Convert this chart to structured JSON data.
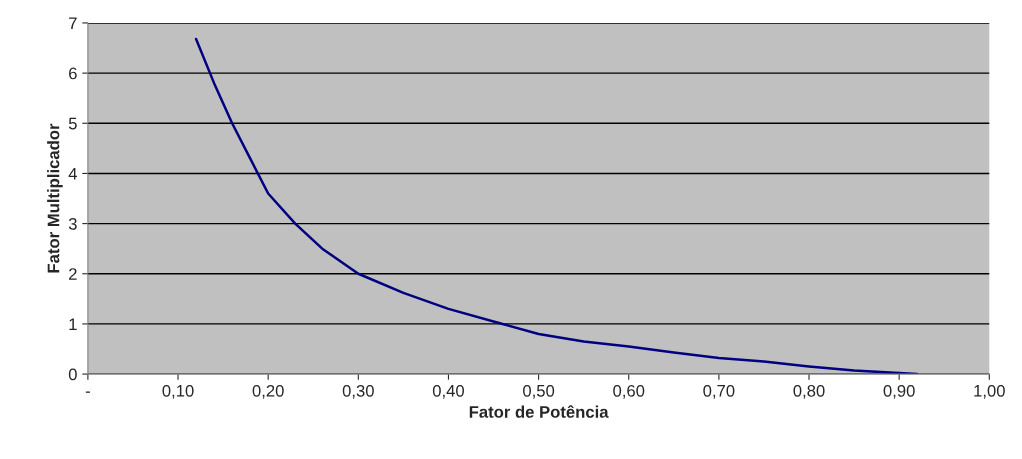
{
  "chart_data": {
    "type": "line",
    "xlabel": "Fator de Potência",
    "ylabel": "Fator Multiplicador",
    "x": [
      0.12,
      0.14,
      0.16,
      0.18,
      0.2,
      0.23,
      0.26,
      0.3,
      0.35,
      0.4,
      0.46,
      0.5,
      0.55,
      0.6,
      0.65,
      0.7,
      0.75,
      0.8,
      0.85,
      0.9,
      0.92
    ],
    "series": [
      {
        "color": "#000080",
        "values": [
          6.68,
          5.8,
          5.0,
          4.3,
          3.6,
          3.0,
          2.5,
          2.0,
          1.62,
          1.3,
          1.0,
          0.8,
          0.65,
          0.55,
          0.43,
          0.32,
          0.25,
          0.15,
          0.07,
          0.02,
          0.0
        ]
      }
    ],
    "xlim": [
      0,
      1
    ],
    "xticks": [
      {
        "value": 0,
        "label": "-"
      },
      {
        "value": 0.1,
        "label": "0,10"
      },
      {
        "value": 0.2,
        "label": "0,20"
      },
      {
        "value": 0.3,
        "label": "0,30"
      },
      {
        "value": 0.4,
        "label": "0,40"
      },
      {
        "value": 0.5,
        "label": "0,50"
      },
      {
        "value": 0.6,
        "label": "0,60"
      },
      {
        "value": 0.7,
        "label": "0,70"
      },
      {
        "value": 0.8,
        "label": "0,80"
      },
      {
        "value": 0.9,
        "label": "0,90"
      },
      {
        "value": 1.0,
        "label": "1,00"
      }
    ],
    "ylim": [
      0,
      7
    ],
    "yticks": [
      0,
      1,
      2,
      3,
      4,
      5,
      6,
      7
    ],
    "grid": "y",
    "legend": false
  }
}
